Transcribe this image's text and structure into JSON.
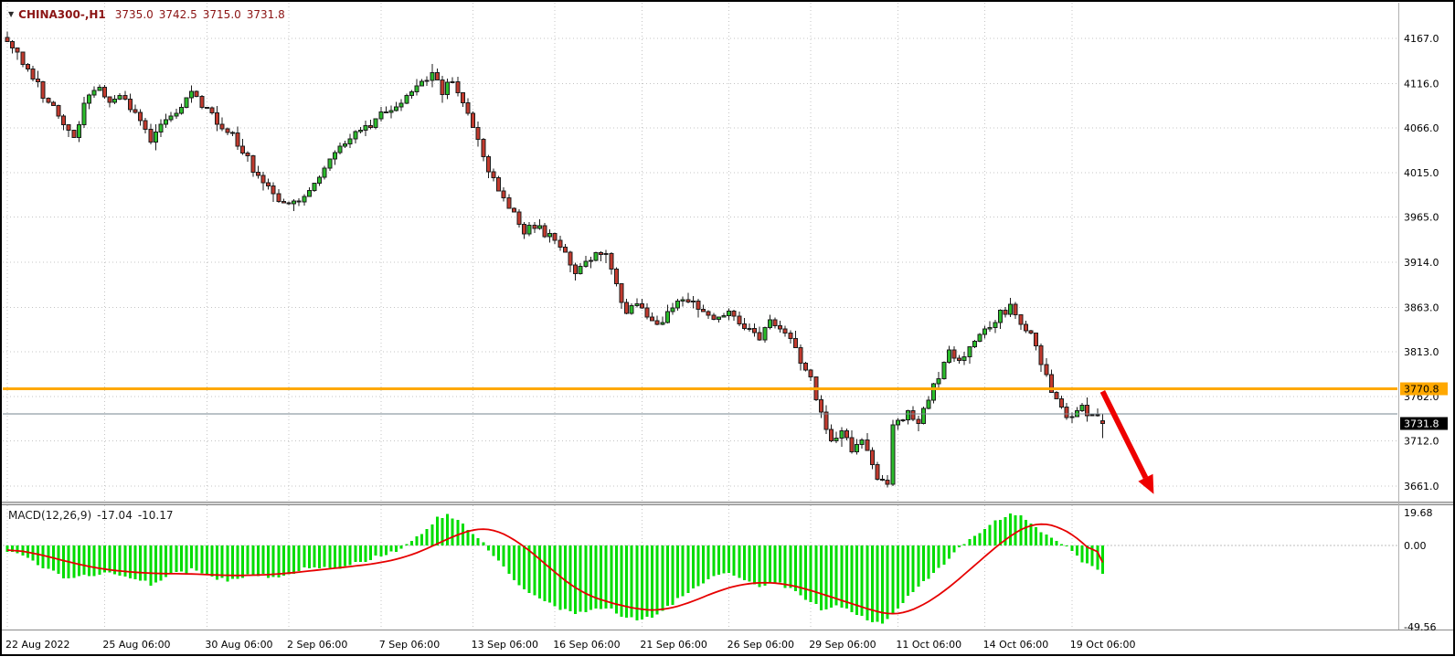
{
  "window": {
    "dropdown_icon": "▼",
    "title_symbol": "CHINA300-,H1",
    "open_text": "3735.0",
    "high_text": "3742.5",
    "low_text": "3715.0",
    "close_text": "3731.8"
  },
  "colors": {
    "background": "#ffffff",
    "border": "#000000",
    "grid": "#c4c4c4",
    "bull": "#2bbd2b",
    "bear": "#c23a2e",
    "candle_border": "#1c1c1c",
    "wick": "#1c1c1c",
    "hline": "#ffa800",
    "hline_text": "#000000",
    "last_price_bg": "#000000",
    "last_price_text": "#ffffff",
    "ask_line": "#76858f",
    "macd_hist": "#00dd00",
    "macd_signal": "#e60000",
    "macd_zero_line": "#bcbcbc",
    "separator": "#8a8a8a",
    "separator_fill": "#d6d6d6",
    "axis_text": "#000000",
    "title_text": "#8b1414",
    "arrow": "#ee0000"
  },
  "chart_data": {
    "type": "candlestick",
    "symbol": "CHINA300-",
    "timeframe": "H1",
    "quote": {
      "open": 3735.0,
      "high": 3742.5,
      "low": 3715.0,
      "close": 3731.8
    },
    "y_axis": {
      "ticks": [
        4167.0,
        4116.0,
        4066.0,
        4015.0,
        3965.0,
        3914.0,
        3863.0,
        3813.0,
        3762.0,
        3712.0,
        3661.0
      ],
      "horizontal_line_price": 3770.8,
      "horizontal_line_label": "3770.8",
      "last_price": 3731.8,
      "last_price_label": "3731.8",
      "ask_line_price": 3742.5
    },
    "x_axis": {
      "labels": [
        {
          "text": "22 Aug 2022",
          "index": 0
        },
        {
          "text": "25 Aug 06:00",
          "index": 19
        },
        {
          "text": "30 Aug 06:00",
          "index": 39
        },
        {
          "text": "2 Sep 06:00",
          "index": 55
        },
        {
          "text": "7 Sep 06:00",
          "index": 73
        },
        {
          "text": "13 Sep 06:00",
          "index": 91
        },
        {
          "text": "16 Sep 06:00",
          "index": 107
        },
        {
          "text": "21 Sep 06:00",
          "index": 124
        },
        {
          "text": "26 Sep 06:00",
          "index": 141
        },
        {
          "text": "29 Sep 06:00",
          "index": 157
        },
        {
          "text": "11 Oct 06:00",
          "index": 174
        },
        {
          "text": "14 Oct 06:00",
          "index": 191
        },
        {
          "text": "19 Oct 06:00",
          "index": 208
        }
      ]
    },
    "candles": {
      "count": 215,
      "seed": 20221022,
      "close_path": [
        [
          0,
          4165
        ],
        [
          1,
          4162
        ],
        [
          3,
          4140
        ],
        [
          5,
          4125
        ],
        [
          7,
          4105
        ],
        [
          9,
          4088
        ],
        [
          11,
          4068
        ],
        [
          13,
          4058
        ],
        [
          15,
          4090
        ],
        [
          17,
          4108
        ],
        [
          18,
          4115
        ],
        [
          20,
          4096
        ],
        [
          22,
          4102
        ],
        [
          24,
          4088
        ],
        [
          26,
          4075
        ],
        [
          28,
          4052
        ],
        [
          30,
          4072
        ],
        [
          32,
          4080
        ],
        [
          34,
          4090
        ],
        [
          36,
          4110
        ],
        [
          38,
          4088
        ],
        [
          40,
          4082
        ],
        [
          42,
          4068
        ],
        [
          44,
          4056
        ],
        [
          46,
          4040
        ],
        [
          48,
          4020
        ],
        [
          50,
          4005
        ],
        [
          52,
          3992
        ],
        [
          54,
          3984
        ],
        [
          56,
          3980
        ],
        [
          58,
          3990
        ],
        [
          60,
          4000
        ],
        [
          62,
          4018
        ],
        [
          64,
          4038
        ],
        [
          66,
          4050
        ],
        [
          68,
          4058
        ],
        [
          70,
          4066
        ],
        [
          72,
          4076
        ],
        [
          74,
          4082
        ],
        [
          76,
          4088
        ],
        [
          78,
          4098
        ],
        [
          80,
          4112
        ],
        [
          82,
          4120
        ],
        [
          83,
          4126
        ],
        [
          85,
          4108
        ],
        [
          87,
          4116
        ],
        [
          89,
          4098
        ],
        [
          91,
          4064
        ],
        [
          93,
          4032
        ],
        [
          95,
          4008
        ],
        [
          97,
          3986
        ],
        [
          99,
          3968
        ],
        [
          101,
          3948
        ],
        [
          103,
          3958
        ],
        [
          105,
          3946
        ],
        [
          107,
          3938
        ],
        [
          109,
          3924
        ],
        [
          111,
          3906
        ],
        [
          113,
          3914
        ],
        [
          115,
          3924
        ],
        [
          117,
          3928
        ],
        [
          119,
          3886
        ],
        [
          121,
          3858
        ],
        [
          123,
          3868
        ],
        [
          125,
          3854
        ],
        [
          127,
          3842
        ],
        [
          129,
          3858
        ],
        [
          131,
          3870
        ],
        [
          133,
          3873
        ],
        [
          135,
          3860
        ],
        [
          137,
          3852
        ],
        [
          139,
          3848
        ],
        [
          141,
          3857
        ],
        [
          143,
          3846
        ],
        [
          145,
          3838
        ],
        [
          147,
          3832
        ],
        [
          149,
          3846
        ],
        [
          151,
          3840
        ],
        [
          153,
          3830
        ],
        [
          155,
          3803
        ],
        [
          157,
          3782
        ],
        [
          159,
          3742
        ],
        [
          161,
          3712
        ],
        [
          163,
          3723
        ],
        [
          165,
          3703
        ],
        [
          167,
          3713
        ],
        [
          169,
          3683
        ],
        [
          171,
          3662
        ],
        [
          172,
          3666
        ],
        [
          173,
          3726
        ],
        [
          174,
          3733
        ],
        [
          176,
          3743
        ],
        [
          178,
          3736
        ],
        [
          180,
          3757
        ],
        [
          182,
          3787
        ],
        [
          184,
          3812
        ],
        [
          186,
          3803
        ],
        [
          188,
          3822
        ],
        [
          190,
          3832
        ],
        [
          192,
          3843
        ],
        [
          194,
          3856
        ],
        [
          196,
          3862
        ],
        [
          198,
          3847
        ],
        [
          200,
          3831
        ],
        [
          202,
          3801
        ],
        [
          204,
          3772
        ],
        [
          206,
          3748
        ],
        [
          208,
          3736
        ],
        [
          210,
          3748
        ],
        [
          212,
          3742
        ],
        [
          214,
          3733
        ]
      ]
    },
    "annotation_arrow": {
      "from": [
        214,
        3768
      ],
      "to": [
        224,
        3652
      ]
    },
    "macd": {
      "label": "MACD(12,26,9)",
      "value": -17.04,
      "signal": -10.17,
      "value_text": "-17.04",
      "signal_text": "-10.17",
      "scale_max": 19.68,
      "scale_zero": 0.0,
      "scale_min": -49.56,
      "scale_max_label": "19.68",
      "scale_zero_label": "0.00",
      "scale_min_label": "-49.56",
      "histogram_path": [
        [
          0,
          -3
        ],
        [
          4,
          -8
        ],
        [
          8,
          -14
        ],
        [
          12,
          -21
        ],
        [
          16,
          -18
        ],
        [
          20,
          -15
        ],
        [
          24,
          -20
        ],
        [
          28,
          -23
        ],
        [
          32,
          -17
        ],
        [
          36,
          -15
        ],
        [
          40,
          -19
        ],
        [
          44,
          -21
        ],
        [
          48,
          -17
        ],
        [
          52,
          -19
        ],
        [
          56,
          -16
        ],
        [
          60,
          -12
        ],
        [
          64,
          -14
        ],
        [
          68,
          -11
        ],
        [
          72,
          -7
        ],
        [
          76,
          -3
        ],
        [
          79,
          2
        ],
        [
          82,
          10
        ],
        [
          84,
          16
        ],
        [
          86,
          19
        ],
        [
          88,
          15
        ],
        [
          90,
          10
        ],
        [
          92,
          4
        ],
        [
          94,
          -2
        ],
        [
          96,
          -10
        ],
        [
          99,
          -20
        ],
        [
          102,
          -28
        ],
        [
          105,
          -34
        ],
        [
          108,
          -38
        ],
        [
          111,
          -41
        ],
        [
          114,
          -39
        ],
        [
          117,
          -37
        ],
        [
          120,
          -42
        ],
        [
          123,
          -45
        ],
        [
          126,
          -43
        ],
        [
          129,
          -37
        ],
        [
          132,
          -30
        ],
        [
          135,
          -24
        ],
        [
          138,
          -19
        ],
        [
          141,
          -17
        ],
        [
          144,
          -21
        ],
        [
          147,
          -25
        ],
        [
          150,
          -22
        ],
        [
          153,
          -26
        ],
        [
          156,
          -32
        ],
        [
          159,
          -38
        ],
        [
          162,
          -36
        ],
        [
          165,
          -40
        ],
        [
          168,
          -44
        ],
        [
          171,
          -48
        ],
        [
          173,
          -41
        ],
        [
          176,
          -31
        ],
        [
          179,
          -22
        ],
        [
          182,
          -13
        ],
        [
          185,
          -5
        ],
        [
          188,
          3
        ],
        [
          191,
          10
        ],
        [
          194,
          16
        ],
        [
          196,
          19
        ],
        [
          198,
          17
        ],
        [
          200,
          13
        ],
        [
          203,
          7
        ],
        [
          206,
          1
        ],
        [
          209,
          -7
        ],
        [
          212,
          -13
        ],
        [
          214,
          -17.04
        ]
      ],
      "signal_path": [
        [
          0,
          -2
        ],
        [
          6,
          -5
        ],
        [
          12,
          -10
        ],
        [
          18,
          -14
        ],
        [
          24,
          -16
        ],
        [
          30,
          -17
        ],
        [
          36,
          -17
        ],
        [
          42,
          -18
        ],
        [
          48,
          -18
        ],
        [
          54,
          -17
        ],
        [
          60,
          -15
        ],
        [
          66,
          -13
        ],
        [
          72,
          -11
        ],
        [
          78,
          -7
        ],
        [
          82,
          -2
        ],
        [
          86,
          4
        ],
        [
          90,
          9
        ],
        [
          93,
          11
        ],
        [
          96,
          9
        ],
        [
          100,
          2
        ],
        [
          104,
          -8
        ],
        [
          108,
          -19
        ],
        [
          112,
          -28
        ],
        [
          116,
          -33
        ],
        [
          120,
          -36
        ],
        [
          124,
          -39
        ],
        [
          128,
          -39
        ],
        [
          132,
          -36
        ],
        [
          136,
          -31
        ],
        [
          140,
          -26
        ],
        [
          144,
          -23
        ],
        [
          148,
          -22
        ],
        [
          152,
          -23
        ],
        [
          156,
          -26
        ],
        [
          160,
          -30
        ],
        [
          164,
          -34
        ],
        [
          168,
          -38
        ],
        [
          171,
          -41
        ],
        [
          174,
          -42
        ],
        [
          177,
          -39
        ],
        [
          180,
          -34
        ],
        [
          183,
          -28
        ],
        [
          186,
          -20
        ],
        [
          189,
          -12
        ],
        [
          192,
          -4
        ],
        [
          195,
          4
        ],
        [
          198,
          10
        ],
        [
          201,
          14
        ],
        [
          204,
          13
        ],
        [
          207,
          9
        ],
        [
          210,
          3
        ],
        [
          212,
          -4
        ],
        [
          214,
          -10.17
        ]
      ]
    }
  }
}
